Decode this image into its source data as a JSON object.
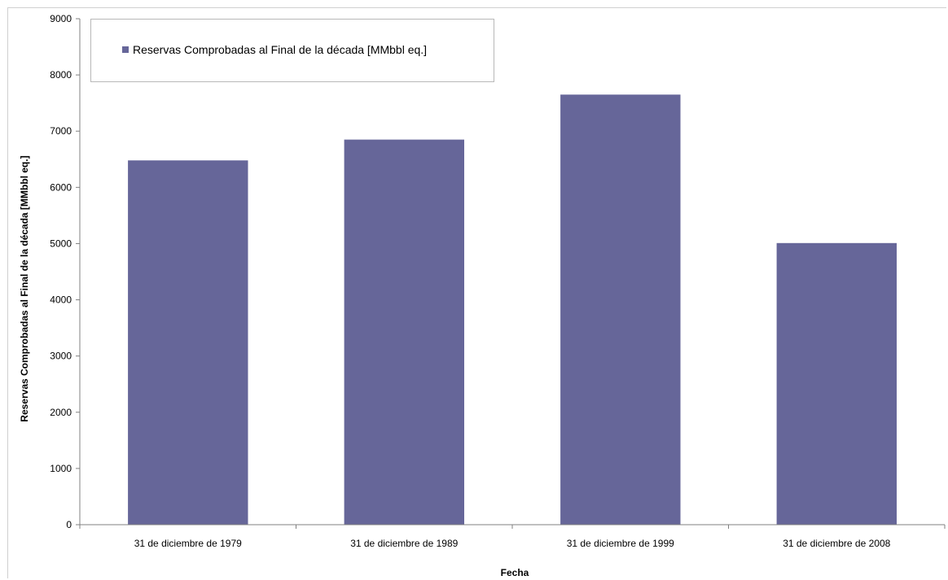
{
  "chart_data": {
    "type": "bar",
    "categories": [
      "31 de diciembre de 1979",
      "31 de diciembre de 1989",
      "31 de diciembre de 1999",
      "31 de diciembre de 2008"
    ],
    "series": [
      {
        "name": "Reservas Comprobadas al Final de la década [MMbbl eq.]",
        "values": [
          6480,
          6850,
          7650,
          5010
        ],
        "color": "#666699"
      }
    ],
    "title": "",
    "xlabel": "Fecha",
    "ylabel": "Reservas Comprobadas al Final de la década [MMbbl eq.]",
    "ylim": [
      0,
      9000
    ],
    "yticks": [
      "0",
      "1000",
      "2000",
      "3000",
      "4000",
      "5000",
      "6000",
      "7000",
      "8000",
      "9000"
    ],
    "grid": false,
    "legend_position": "top-left"
  }
}
